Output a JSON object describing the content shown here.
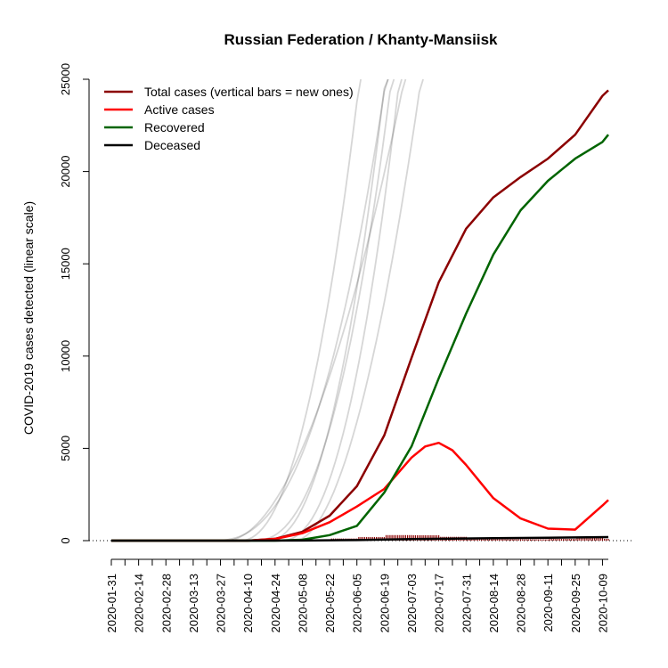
{
  "chart_data": {
    "type": "line",
    "title": "Russian Federation / Khanty-Mansiisk",
    "ylabel": "COVID-2019 cases detected (linear scale)",
    "xlabel": "",
    "ylim": [
      0,
      25000
    ],
    "y_ticks": [
      0,
      5000,
      10000,
      15000,
      20000,
      25000
    ],
    "x_start": "2020-01-31",
    "x_end": "2020-10-12",
    "x_tick_labels": [
      "2020-01-31",
      "2020-02-14",
      "2020-02-28",
      "2020-03-13",
      "2020-03-27",
      "2020-04-10",
      "2020-04-24",
      "2020-05-08",
      "2020-05-22",
      "2020-06-05",
      "2020-06-19",
      "2020-07-03",
      "2020-07-17",
      "2020-07-31",
      "2020-08-14",
      "2020-08-28",
      "2020-09-11",
      "2020-09-25",
      "2020-10-09"
    ],
    "legend_position": "top-left",
    "grid": false,
    "series": [
      {
        "name": "Total cases (vertical bars = new ones)",
        "color": "#8b0000",
        "dates": [
          "2020-01-31",
          "2020-04-10",
          "2020-04-24",
          "2020-05-08",
          "2020-05-22",
          "2020-06-05",
          "2020-06-19",
          "2020-07-03",
          "2020-07-17",
          "2020-07-31",
          "2020-08-14",
          "2020-08-28",
          "2020-09-11",
          "2020-09-25",
          "2020-10-09",
          "2020-10-12"
        ],
        "values": [
          0,
          0,
          100,
          480,
          1350,
          2950,
          5700,
          9900,
          14000,
          16900,
          18600,
          19700,
          20700,
          22000,
          24100,
          24400
        ]
      },
      {
        "name": "Active cases",
        "color": "#ff0000",
        "dates": [
          "2020-01-31",
          "2020-04-10",
          "2020-04-24",
          "2020-05-08",
          "2020-05-22",
          "2020-06-05",
          "2020-06-19",
          "2020-07-03",
          "2020-07-10",
          "2020-07-17",
          "2020-07-24",
          "2020-07-31",
          "2020-08-07",
          "2020-08-14",
          "2020-08-28",
          "2020-09-11",
          "2020-09-25",
          "2020-10-09",
          "2020-10-12"
        ],
        "values": [
          0,
          0,
          90,
          400,
          1000,
          1850,
          2800,
          4500,
          5100,
          5300,
          4900,
          4100,
          3200,
          2300,
          1200,
          650,
          600,
          1900,
          2200
        ]
      },
      {
        "name": "Recovered",
        "color": "#006400",
        "dates": [
          "2020-01-31",
          "2020-04-24",
          "2020-05-08",
          "2020-05-22",
          "2020-06-05",
          "2020-06-19",
          "2020-07-03",
          "2020-07-17",
          "2020-07-31",
          "2020-08-14",
          "2020-08-28",
          "2020-09-11",
          "2020-09-25",
          "2020-10-09",
          "2020-10-12"
        ],
        "values": [
          0,
          0,
          50,
          300,
          800,
          2600,
          5100,
          8800,
          12300,
          15500,
          17900,
          19500,
          20700,
          21600,
          22000
        ]
      },
      {
        "name": "Deceased",
        "color": "#000000",
        "dates": [
          "2020-01-31",
          "2020-05-08",
          "2020-06-05",
          "2020-07-03",
          "2020-08-14",
          "2020-09-11",
          "2020-10-12"
        ],
        "values": [
          0,
          5,
          30,
          80,
          130,
          160,
          195
        ]
      }
    ]
  }
}
